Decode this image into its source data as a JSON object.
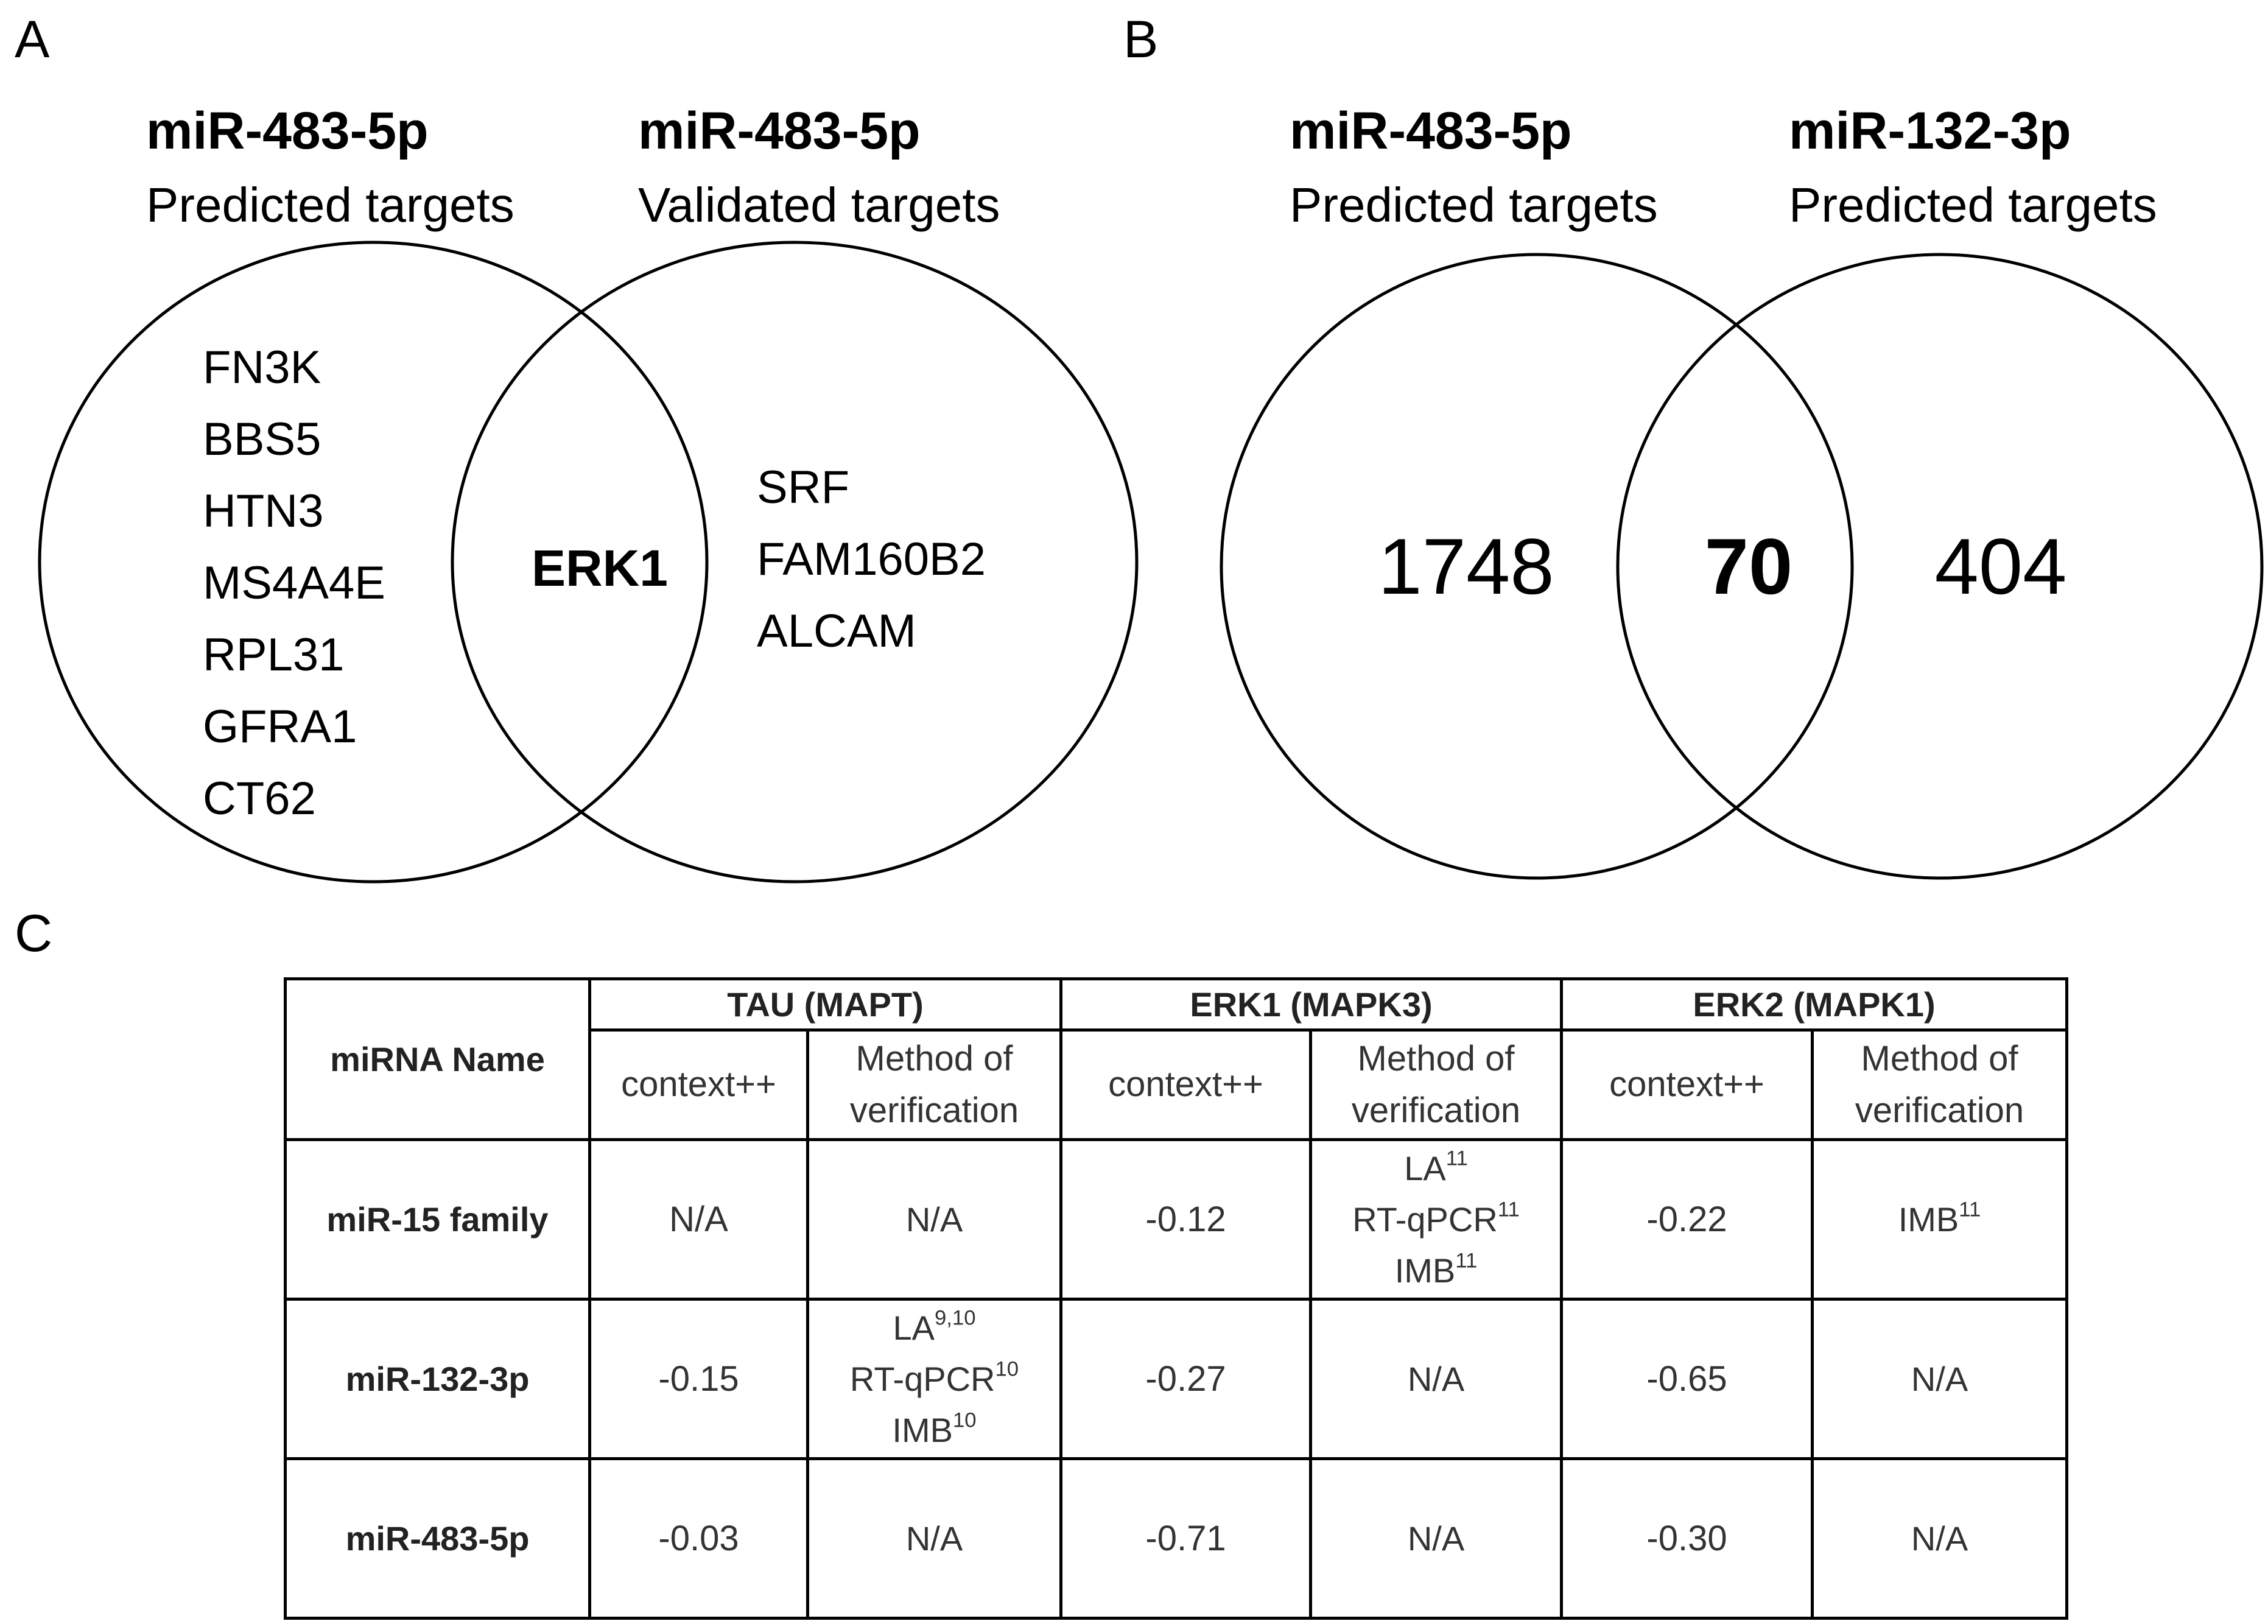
{
  "panels": {
    "a": {
      "letter": "A",
      "left": {
        "title": "miR-483-5p",
        "subtitle": "Predicted targets",
        "items": [
          "FN3K",
          "BBS5",
          "HTN3",
          "MS4A4E",
          "RPL31",
          "GFRA1",
          "CT62"
        ]
      },
      "right": {
        "title": "miR-483-5p",
        "subtitle": "Validated targets",
        "items": [
          "SRF",
          "FAM160B2",
          "ALCAM"
        ]
      },
      "intersection": "ERK1"
    },
    "b": {
      "letter": "B",
      "left": {
        "title": "miR-483-5p",
        "subtitle": "Predicted targets",
        "count": "1748"
      },
      "right": {
        "title": "miR-132-3p",
        "subtitle": "Predicted targets",
        "count": "404"
      },
      "intersection": "70"
    },
    "c": {
      "letter": "C"
    }
  },
  "table": {
    "row_header": "miRNA Name",
    "groups": [
      "TAU (MAPT)",
      "ERK1 (MAPK3)",
      "ERK2 (MAPK1)"
    ],
    "sub_headers": {
      "context": "context++",
      "method_line1": "Method of",
      "method_line2": "verification"
    },
    "rows": [
      {
        "name": "miR-15 family",
        "tau_context": "N/A",
        "tau_method": [
          {
            "text": "N/A",
            "sup": ""
          }
        ],
        "erk1_context": "-0.12",
        "erk1_method": [
          {
            "text": "LA",
            "sup": "11"
          },
          {
            "text": "RT-qPCR",
            "sup": "11"
          },
          {
            "text": "IMB",
            "sup": "11"
          }
        ],
        "erk2_context": "-0.22",
        "erk2_method": [
          {
            "text": "IMB",
            "sup": "11"
          }
        ]
      },
      {
        "name": "miR-132-3p",
        "tau_context": "-0.15",
        "tau_method": [
          {
            "text": "LA",
            "sup": "9,10"
          },
          {
            "text": "RT-qPCR",
            "sup": "10"
          },
          {
            "text": "IMB",
            "sup": "10"
          }
        ],
        "erk1_context": "-0.27",
        "erk1_method": [
          {
            "text": "N/A",
            "sup": ""
          }
        ],
        "erk2_context": "-0.65",
        "erk2_method": [
          {
            "text": "N/A",
            "sup": ""
          }
        ]
      },
      {
        "name": "miR-483-5p",
        "tau_context": "-0.03",
        "tau_method": [
          {
            "text": "N/A",
            "sup": ""
          }
        ],
        "erk1_context": "-0.71",
        "erk1_method": [
          {
            "text": "N/A",
            "sup": ""
          }
        ],
        "erk2_context": "-0.30",
        "erk2_method": [
          {
            "text": "N/A",
            "sup": ""
          }
        ]
      }
    ]
  }
}
